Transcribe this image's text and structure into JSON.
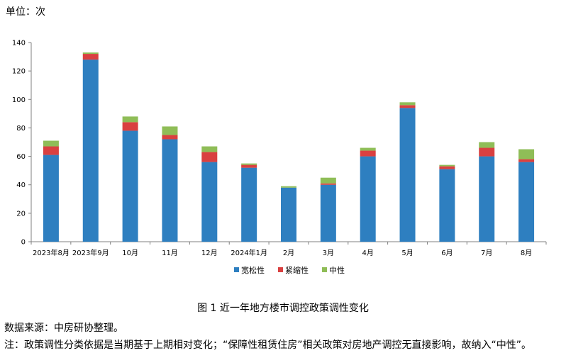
{
  "unit_label": "单位：次",
  "caption": "图 1  近一年地方楼市调控政策调性变化",
  "source": "数据来源：中房研协整理。",
  "note": "注：政策调性分类依据是当期基于上期相对变化；“保障性租赁住房”相关政策对房地产调控无直接影响，故纳入“中性”。",
  "chart_data": {
    "type": "bar",
    "stacked": true,
    "categories": [
      "2023年8月",
      "2023年9月",
      "10月",
      "11月",
      "12月",
      "2024年1月",
      "2月",
      "3月",
      "4月",
      "5月",
      "6月",
      "7月",
      "8月"
    ],
    "series": [
      {
        "name": "宽松性",
        "color": "#2e7fc0",
        "values": [
          61,
          128,
          78,
          72,
          56,
          52,
          38,
          40,
          60,
          94,
          51,
          60,
          56
        ]
      },
      {
        "name": "紧缩性",
        "color": "#d94040",
        "values": [
          6,
          4,
          6,
          3,
          7,
          2,
          0,
          1,
          4,
          2,
          2,
          6,
          2
        ]
      },
      {
        "name": "中性",
        "color": "#8fbd57",
        "values": [
          4,
          1,
          4,
          6,
          4,
          1,
          1,
          4,
          2,
          2,
          1,
          4,
          7
        ]
      }
    ],
    "y_ticks": [
      0,
      20,
      40,
      60,
      80,
      100,
      120,
      140
    ],
    "ylim": [
      0,
      140
    ],
    "grid": false,
    "legend_position": "bottom-center"
  }
}
